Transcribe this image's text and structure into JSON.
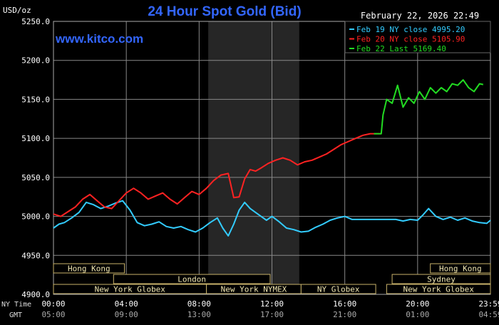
{
  "chart_data": {
    "type": "line",
    "title": "24 Hour Spot Gold (Bid)",
    "ylabel": "USD/oz",
    "watermark": "www.kitco.com",
    "timestamp": "February 22, 2026 22:49",
    "ylim": [
      4900,
      5250
    ],
    "yticks": [
      4900,
      4950,
      5000,
      5050,
      5100,
      5150,
      5200,
      5250
    ],
    "ytick_labels": [
      "4900.0",
      "4950.0",
      "5000.0",
      "5050.0",
      "5100.0",
      "5150.0",
      "5200.0",
      "5250.0"
    ],
    "xlim": [
      0,
      24
    ],
    "xticks": [
      0,
      4,
      8,
      12,
      16,
      20,
      24
    ],
    "xaxis_row_labels": {
      "ny": "NY Time",
      "gmt": "GMT"
    },
    "xtick_labels_ny": [
      "00:00",
      "04:00",
      "08:00",
      "12:00",
      "16:00",
      "20:00",
      "23:59"
    ],
    "xtick_labels_gmt": [
      "05:00",
      "09:00",
      "13:00",
      "17:00",
      "21:00",
      "01:00",
      "04:59"
    ],
    "grid": true,
    "shaded_region": [
      8.5,
      13.5
    ],
    "legend_position": "top-right",
    "legend": [
      {
        "label": "Feb 19 NY close 4995.20",
        "color": "#33ccff"
      },
      {
        "label": "Feb 20 NY close 5105.90",
        "color": "#ff2222"
      },
      {
        "label": "Feb 22 Last 5169.40",
        "color": "#22dd22"
      }
    ],
    "series": [
      {
        "name": "Feb 19 NY close 4995.20",
        "color": "#33ccff",
        "x": [
          0,
          0.3,
          0.6,
          1.0,
          1.4,
          1.8,
          2.2,
          2.6,
          3.0,
          3.4,
          3.8,
          4.2,
          4.6,
          5.0,
          5.4,
          5.8,
          6.2,
          6.6,
          7.0,
          7.4,
          7.8,
          8.2,
          8.6,
          9.0,
          9.3,
          9.6,
          9.9,
          10.2,
          10.5,
          10.8,
          11.1,
          11.4,
          11.7,
          12.0,
          12.4,
          12.8,
          13.2,
          13.6,
          14.0,
          14.4,
          14.8,
          15.2,
          15.6,
          16.0,
          16.4,
          16.8,
          17.2,
          17.6,
          18.0,
          18.4,
          18.8,
          19.2,
          19.6,
          20.0,
          20.3,
          20.6,
          21.0,
          21.4,
          21.8,
          22.2,
          22.6,
          23.0,
          23.4,
          23.8,
          24.0
        ],
        "y": [
          4985,
          4990,
          4992,
          4998,
          5005,
          5018,
          5015,
          5010,
          5013,
          5017,
          5020,
          5008,
          4992,
          4988,
          4990,
          4993,
          4987,
          4985,
          4987,
          4983,
          4980,
          4985,
          4992,
          4998,
          4985,
          4975,
          4990,
          5008,
          5018,
          5010,
          5005,
          5000,
          4995,
          5000,
          4993,
          4985,
          4983,
          4980,
          4981,
          4986,
          4990,
          4995,
          4998,
          5000,
          4996,
          4996,
          4996,
          4996,
          4996,
          4996,
          4996,
          4994,
          4996,
          4995,
          5002,
          5010,
          5000,
          4996,
          4999,
          4995,
          4998,
          4994,
          4992,
          4991,
          4995
        ]
      },
      {
        "name": "Feb 20 NY close 5105.90",
        "color": "#ff2222",
        "x": [
          0,
          0.4,
          0.8,
          1.2,
          1.6,
          2.0,
          2.4,
          2.8,
          3.2,
          3.6,
          4.0,
          4.4,
          4.8,
          5.2,
          5.6,
          6.0,
          6.4,
          6.8,
          7.2,
          7.6,
          8.0,
          8.4,
          8.8,
          9.2,
          9.6,
          9.9,
          10.2,
          10.5,
          10.8,
          11.1,
          11.4,
          11.8,
          12.2,
          12.6,
          13.0,
          13.4,
          13.8,
          14.2,
          14.6,
          15.0,
          15.4,
          15.8,
          16.2,
          16.6,
          17.0,
          17.4,
          17.6,
          18.0
        ],
        "y": [
          5003,
          5000,
          5006,
          5012,
          5022,
          5028,
          5020,
          5012,
          5010,
          5020,
          5030,
          5036,
          5030,
          5022,
          5026,
          5030,
          5022,
          5016,
          5024,
          5032,
          5028,
          5036,
          5046,
          5053,
          5055,
          5024,
          5025,
          5048,
          5060,
          5058,
          5062,
          5068,
          5072,
          5075,
          5072,
          5066,
          5070,
          5072,
          5076,
          5080,
          5086,
          5092,
          5096,
          5100,
          5104,
          5106,
          5106,
          5106
        ]
      },
      {
        "name": "Feb 22 Last 5169.40",
        "color": "#22dd22",
        "x": [
          17.6,
          18.0,
          18.1,
          18.3,
          18.6,
          18.9,
          19.2,
          19.5,
          19.8,
          20.1,
          20.4,
          20.7,
          21.0,
          21.3,
          21.6,
          21.9,
          22.2,
          22.5,
          22.8,
          23.1,
          23.4,
          23.6
        ],
        "y": [
          5106,
          5106,
          5130,
          5150,
          5145,
          5168,
          5140,
          5152,
          5145,
          5160,
          5150,
          5165,
          5158,
          5165,
          5160,
          5170,
          5168,
          5175,
          5165,
          5160,
          5170,
          5169
        ]
      }
    ],
    "sessions": [
      {
        "label": "Hong Kong",
        "row": 0,
        "start": 0,
        "end": 3.9
      },
      {
        "label": "Hong Kong",
        "row": 0,
        "start": 20.7,
        "end": 24
      },
      {
        "label": "Sydney",
        "row": 1,
        "start": 18.6,
        "end": 24
      },
      {
        "label": "London",
        "row": 1,
        "start": 3.3,
        "end": 11.9
      },
      {
        "label": "New York Globex",
        "row": 2,
        "start": 0,
        "end": 8.4
      },
      {
        "label": "New York NYMEX",
        "row": 2,
        "start": 8.4,
        "end": 13.6
      },
      {
        "label": "NY Globex",
        "row": 2,
        "start": 13.6,
        "end": 17.7
      },
      {
        "label": "New York Globex",
        "row": 2,
        "start": 18.3,
        "end": 24
      }
    ]
  }
}
